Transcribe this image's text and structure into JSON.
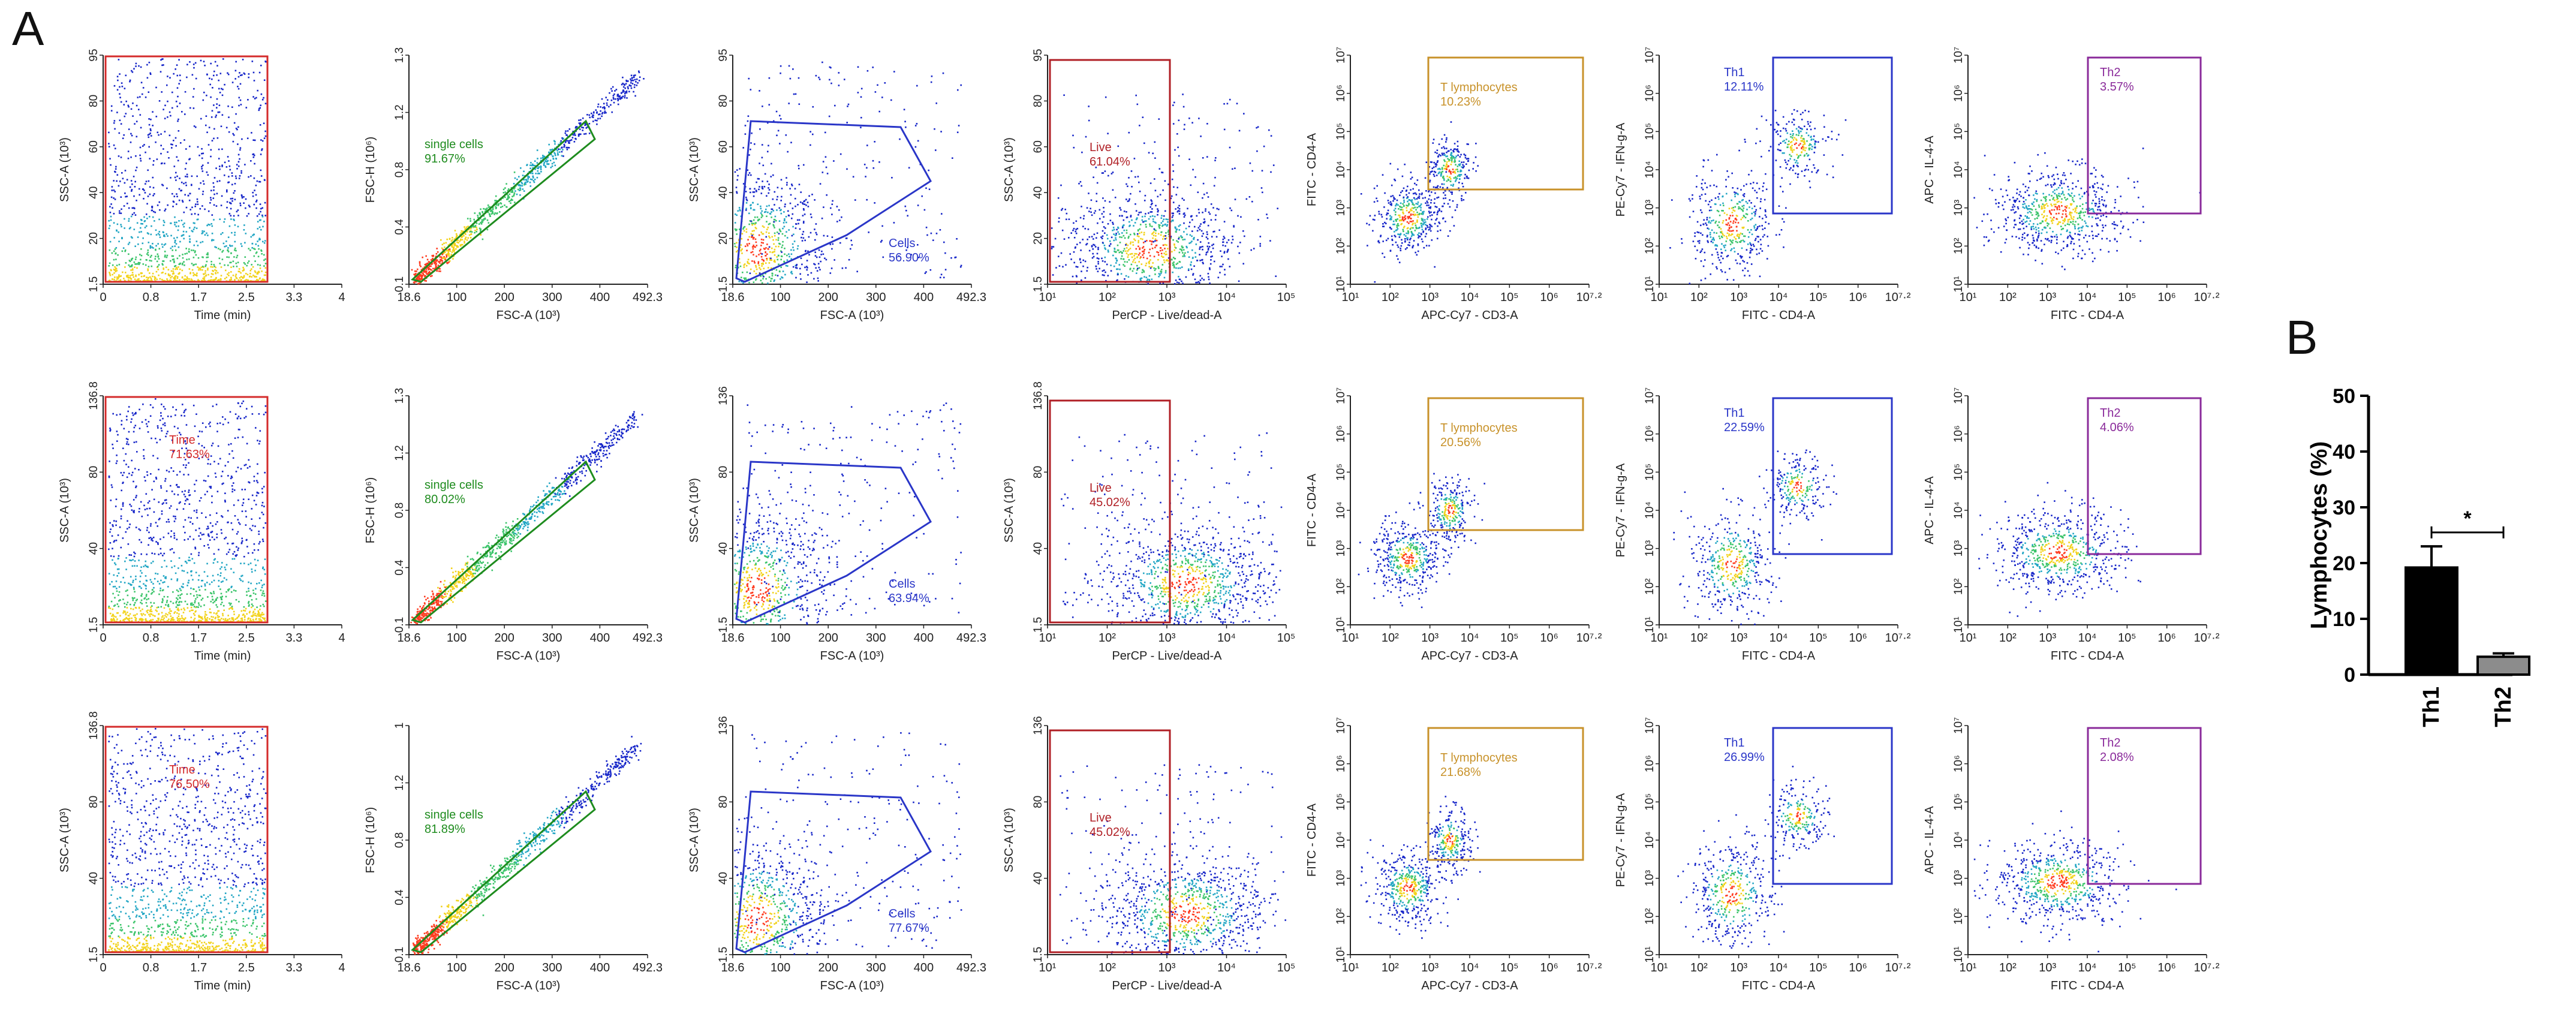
{
  "figure": {
    "panel_a_label": "A",
    "panel_b_label": "B"
  },
  "colors": {
    "time_gate": "#d42b2b",
    "singlets_gate": "#1e8c1e",
    "cells_gate": "#2a36c8",
    "live_gate": "#b01f25",
    "t_gate": "#c8922a",
    "th1_gate": "#2a36c8",
    "th2_gate": "#8a2a9a",
    "bar_th1": "#000000",
    "bar_th2": "#8c8c8c",
    "dot_low": "#1726c9",
    "dot_mid": "#22a6c4",
    "dot_high": "#ff3b1f"
  },
  "chart_data": [
    {
      "panel": "A",
      "type": "scatter",
      "plot_types": [
        "time",
        "singlets",
        "cells",
        "live",
        "tcells",
        "th1",
        "th2"
      ],
      "columns": [
        {
          "xlabel": "Time (min)",
          "ylabel": "SSC-A (10³)",
          "xticks": [
            "0",
            "0.8",
            "1.7",
            "2.5",
            "3.3",
            "4"
          ]
        },
        {
          "xlabel": "FSC-A (10³)",
          "ylabel": "FSC-H (10⁶)",
          "xticks": [
            "18.6",
            "100",
            "200",
            "300",
            "400",
            "492.3"
          ]
        },
        {
          "xlabel": "FSC-A (10³)",
          "ylabel": "SSC-A (10³)",
          "xticks": [
            "18.6",
            "100",
            "200",
            "300",
            "400",
            "492.3"
          ]
        },
        {
          "xlabel": "PerCP - Live/dead-A",
          "ylabel": "SSC-A (10³)",
          "xticks": [
            "10¹",
            "10²",
            "10³",
            "10⁴",
            "10⁵"
          ]
        },
        {
          "xlabel": "APC-Cy7 - CD3-A",
          "ylabel": "FITC - CD4-A",
          "xticks": [
            "10¹",
            "10²",
            "10³",
            "10⁴",
            "10⁵",
            "10⁶",
            "10⁷·²"
          ]
        },
        {
          "xlabel": "FITC - CD4-A",
          "ylabel": "PE-Cy7 - IFN-g-A",
          "xticks": [
            "10¹",
            "10²",
            "10³",
            "10⁴",
            "10⁵",
            "10⁶",
            "10⁷·²"
          ]
        },
        {
          "xlabel": "FITC - CD4-A",
          "ylabel": "APC - IL-4-A",
          "xticks": [
            "10¹",
            "10²",
            "10³",
            "10⁴",
            "10⁵",
            "10⁶",
            "10⁷·²"
          ]
        }
      ],
      "ytick_sets": {
        "time_r1": [
          "95",
          "80",
          "60",
          "40",
          "20",
          "1.5"
        ],
        "time_r2": [
          "136.8",
          "80",
          "40",
          "1.5"
        ],
        "singlets": [
          "1.3",
          "1.2",
          "0.8",
          "0.4",
          "0.1"
        ],
        "singlets_r3": [
          "1",
          "1.2",
          "0.8",
          "0.4",
          "0.1"
        ],
        "cells_r1": [
          "95",
          "80",
          "60",
          "40",
          "20",
          "1.5"
        ],
        "cells_r2": [
          "136",
          "80",
          "40",
          "1.5"
        ],
        "live_r1": [
          "95",
          "80",
          "60",
          "40",
          "20",
          "1.5"
        ],
        "live_r2": [
          "136.8",
          "80",
          "40",
          "1.5"
        ],
        "live_r3": [
          "136",
          "80",
          "40",
          "1.5"
        ],
        "log7": [
          "10⁷",
          "10⁶",
          "10⁵",
          "10⁴",
          "10³",
          "10²",
          "10¹"
        ]
      },
      "rows": [
        {
          "gates": [
            {
              "name": "",
              "percent": ""
            },
            {
              "name": "single cells",
              "percent": "91.67%"
            },
            {
              "name": "Cells",
              "percent": "56.90%"
            },
            {
              "name": "Live",
              "percent": "61.04%"
            },
            {
              "name": "T lymphocytes",
              "percent": "10.23%"
            },
            {
              "name": "Th1",
              "percent": "12.11%"
            },
            {
              "name": "Th2",
              "percent": "3.57%"
            }
          ]
        },
        {
          "gates": [
            {
              "name": "Time",
              "percent": "71.63%"
            },
            {
              "name": "single cells",
              "percent": "80.02%"
            },
            {
              "name": "Cells",
              "percent": "63.94%"
            },
            {
              "name": "Live",
              "percent": "45.02%"
            },
            {
              "name": "T lymphocytes",
              "percent": "20.56%"
            },
            {
              "name": "Th1",
              "percent": "22.59%"
            },
            {
              "name": "Th2",
              "percent": "4.06%"
            }
          ]
        },
        {
          "gates": [
            {
              "name": "Time",
              "percent": "76.50%"
            },
            {
              "name": "single cells",
              "percent": "81.89%"
            },
            {
              "name": "Cells",
              "percent": "77.67%"
            },
            {
              "name": "Live",
              "percent": "45.02%"
            },
            {
              "name": "T lymphocytes",
              "percent": "21.68%"
            },
            {
              "name": "Th1",
              "percent": "26.99%"
            },
            {
              "name": "Th2",
              "percent": "2.08%"
            }
          ]
        }
      ]
    },
    {
      "panel": "B",
      "type": "bar",
      "categories": [
        "Th1",
        "Th2"
      ],
      "values": [
        19.2,
        3.2
      ],
      "errors": [
        3.8,
        0.6
      ],
      "ylabel": "Lymphocytes (%)",
      "ylim": [
        0,
        50
      ],
      "yticks": [
        "0",
        "10",
        "20",
        "30",
        "40",
        "50"
      ],
      "significance": "*"
    }
  ]
}
